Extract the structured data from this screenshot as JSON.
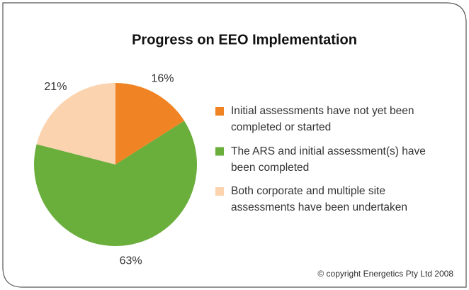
{
  "chart_data": {
    "type": "pie",
    "title": "Progress on EEO Implementation",
    "categories": [
      "Initial assessments have not yet been completed or started",
      "The ARS and initial assessment(s) have been completed",
      "Both corporate and multiple site assessments have been undertaken"
    ],
    "values": [
      16,
      63,
      21
    ],
    "value_labels": [
      "16%",
      "63%",
      "21%"
    ],
    "colors": [
      "#f08424",
      "#6aae3c",
      "#fbd3ae"
    ],
    "annotation": "© copyright Energetics Pty Ltd 2008"
  }
}
